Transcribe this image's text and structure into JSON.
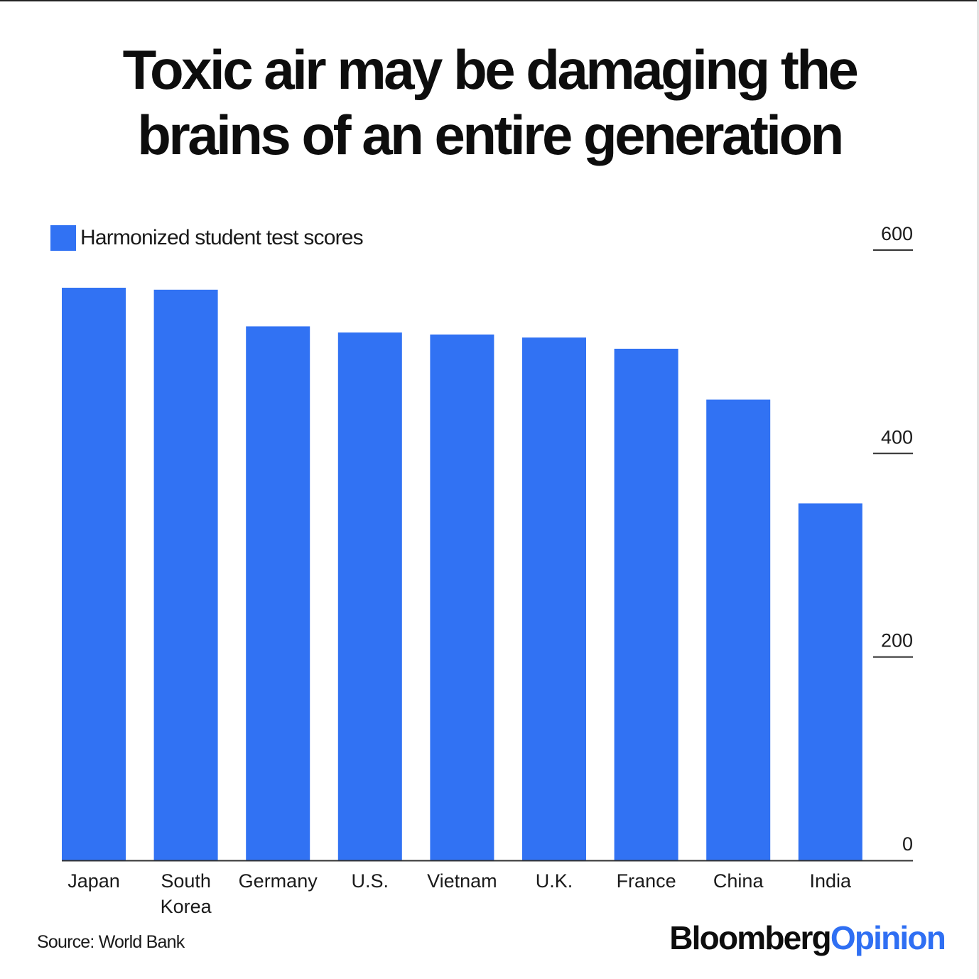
{
  "title": {
    "line1": "Toxic air may be damaging the",
    "line2": "brains of an entire generation"
  },
  "legend": {
    "label": "Harmonized student test scores",
    "color": "#3172f3"
  },
  "source": "Source: World Bank",
  "brand": {
    "part1": "Bloomberg",
    "part2": "Opinion",
    "color1": "#0d0d0d",
    "color2": "#2f6ff3"
  },
  "chart_data": {
    "type": "bar",
    "categories": [
      [
        "Japan"
      ],
      [
        "South",
        "Korea"
      ],
      [
        "Germany"
      ],
      [
        "U.S."
      ],
      [
        "Vietnam"
      ],
      [
        "U.K."
      ],
      [
        "France"
      ],
      [
        "China"
      ],
      [
        "India"
      ]
    ],
    "values": [
      563,
      561,
      525,
      519,
      517,
      514,
      503,
      453,
      351
    ],
    "ylim": [
      0,
      600
    ],
    "yticks": [
      0,
      200,
      400,
      600
    ],
    "ytick_position": "right",
    "legend_position": "top-left",
    "grid": false,
    "bar_color": "#3172f3",
    "title": "Toxic air may be damaging the brains of an entire generation",
    "xlabel": "",
    "ylabel": ""
  }
}
